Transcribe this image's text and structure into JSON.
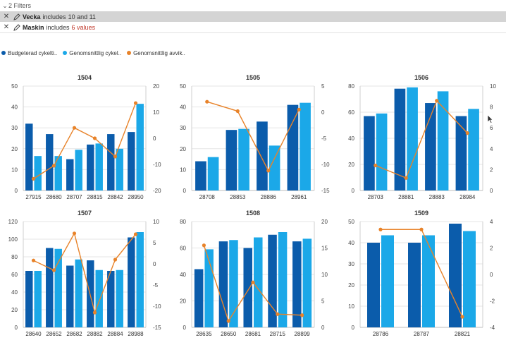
{
  "filters": {
    "header": "2 Filters",
    "rows": [
      {
        "field": "Vecka",
        "op": "includes",
        "value": "10 and 11",
        "value_red": false
      },
      {
        "field": "Maskin",
        "op": "includes",
        "value": "6 values",
        "value_red": true
      }
    ]
  },
  "legend": [
    {
      "label": "Budgeterad cykelti..",
      "color": "#0b5cab"
    },
    {
      "label": "Genomsnittlig cykel..",
      "color": "#1ba8e8"
    },
    {
      "label": "Genomsnittlig avvik..",
      "color": "#e8832a"
    }
  ],
  "colors": {
    "bar1": "#0b5cab",
    "bar2": "#1ba8e8",
    "line": "#e8832a",
    "accent_red": "#c0392b"
  },
  "chart_data": [
    {
      "type": "bar",
      "title": "1504",
      "categories": [
        "27915",
        "28680",
        "28707",
        "28815",
        "28842",
        "28950"
      ],
      "ylim": [
        0,
        50
      ],
      "yticks": [
        0,
        10,
        20,
        30,
        40,
        50
      ],
      "y2lim": [
        -20,
        20
      ],
      "y2ticks": [
        -20,
        -10,
        0,
        10,
        20
      ],
      "series": [
        {
          "name": "Budgeterad cykelti..",
          "values": [
            32,
            27,
            15,
            22,
            27,
            28
          ]
        },
        {
          "name": "Genomsnittlig cykel..",
          "values": [
            16.5,
            16.5,
            19.5,
            22.5,
            20,
            41.5
          ]
        },
        {
          "name": "Genomsnittlig avvik..",
          "axis": "right",
          "values": [
            -15.5,
            -10.5,
            4,
            0,
            -7,
            13.5
          ]
        }
      ]
    },
    {
      "type": "bar",
      "title": "1505",
      "categories": [
        "28708",
        "28853",
        "28886",
        "28961"
      ],
      "ylim": [
        0,
        50
      ],
      "yticks": [
        0,
        10,
        20,
        30,
        40,
        50
      ],
      "y2lim": [
        -15,
        5
      ],
      "y2ticks": [
        -15,
        -10,
        -5,
        0,
        5
      ],
      "series": [
        {
          "name": "Budgeterad cykelti..",
          "values": [
            14,
            29,
            33,
            41
          ]
        },
        {
          "name": "Genomsnittlig cykel..",
          "values": [
            16,
            29.5,
            21.5,
            42
          ]
        },
        {
          "name": "Genomsnittlig avvik..",
          "axis": "right",
          "values": [
            2,
            0.2,
            -11.2,
            0.5
          ]
        }
      ]
    },
    {
      "type": "bar",
      "title": "1506",
      "categories": [
        "28703",
        "28881",
        "28883",
        "28984"
      ],
      "ylim": [
        0,
        80
      ],
      "yticks": [
        0,
        20,
        40,
        60,
        80
      ],
      "y2lim": [
        0,
        10
      ],
      "y2ticks": [
        0,
        2,
        4,
        6,
        8,
        10
      ],
      "series": [
        {
          "name": "Budgeterad cykelti..",
          "values": [
            57,
            78,
            67,
            57
          ]
        },
        {
          "name": "Genomsnittlig cykel..",
          "values": [
            59,
            79,
            76,
            62.5
          ]
        },
        {
          "name": "Genomsnittlig avvik..",
          "axis": "right",
          "values": [
            2.4,
            1.2,
            8.6,
            5.5
          ]
        }
      ]
    },
    {
      "type": "bar",
      "title": "1507",
      "categories": [
        "28640",
        "28652",
        "28682",
        "28882",
        "28884",
        "28988"
      ],
      "ylim": [
        0,
        120
      ],
      "yticks": [
        0,
        20,
        40,
        60,
        80,
        100,
        120
      ],
      "y2lim": [
        -15,
        10
      ],
      "y2ticks": [
        -15,
        -10,
        -5,
        0,
        5,
        10
      ],
      "series": [
        {
          "name": "Budgeterad cykelti..",
          "values": [
            64,
            90,
            70,
            76,
            64,
            102
          ]
        },
        {
          "name": "Genomsnittlig cykel..",
          "values": [
            64,
            89,
            77,
            65,
            65,
            108
          ]
        },
        {
          "name": "Genomsnittlig avvik..",
          "axis": "right",
          "values": [
            0.8,
            -1.5,
            7.2,
            -11.5,
            1,
            7
          ]
        }
      ]
    },
    {
      "type": "bar",
      "title": "1508",
      "categories": [
        "28635",
        "28650",
        "28681",
        "28715",
        "28899"
      ],
      "ylim": [
        0,
        80
      ],
      "yticks": [
        0,
        20,
        40,
        60,
        80
      ],
      "y2lim": [
        0,
        20
      ],
      "y2ticks": [
        0,
        5,
        10,
        15,
        20
      ],
      "series": [
        {
          "name": "Budgeterad cykelti..",
          "values": [
            44,
            65,
            60,
            70,
            65
          ]
        },
        {
          "name": "Genomsnittlig cykel..",
          "values": [
            59,
            66,
            68,
            72,
            67
          ]
        },
        {
          "name": "Genomsnittlig avvik..",
          "axis": "right",
          "values": [
            15.5,
            1.2,
            8.5,
            2.5,
            2.3
          ]
        }
      ]
    },
    {
      "type": "bar",
      "title": "1509",
      "categories": [
        "28786",
        "28787",
        "28821"
      ],
      "ylim": [
        0,
        50
      ],
      "yticks": [
        0,
        10,
        20,
        30,
        40,
        50
      ],
      "y2lim": [
        -4,
        4
      ],
      "y2ticks": [
        -4,
        -2,
        0,
        2,
        4
      ],
      "series": [
        {
          "name": "Budgeterad cykelti..",
          "values": [
            40,
            40,
            49
          ]
        },
        {
          "name": "Genomsnittlig cykel..",
          "values": [
            43.5,
            43.5,
            45.5
          ]
        },
        {
          "name": "Genomsnittlig avvik..",
          "axis": "right",
          "values": [
            3.4,
            3.4,
            -3.2
          ]
        }
      ]
    }
  ]
}
